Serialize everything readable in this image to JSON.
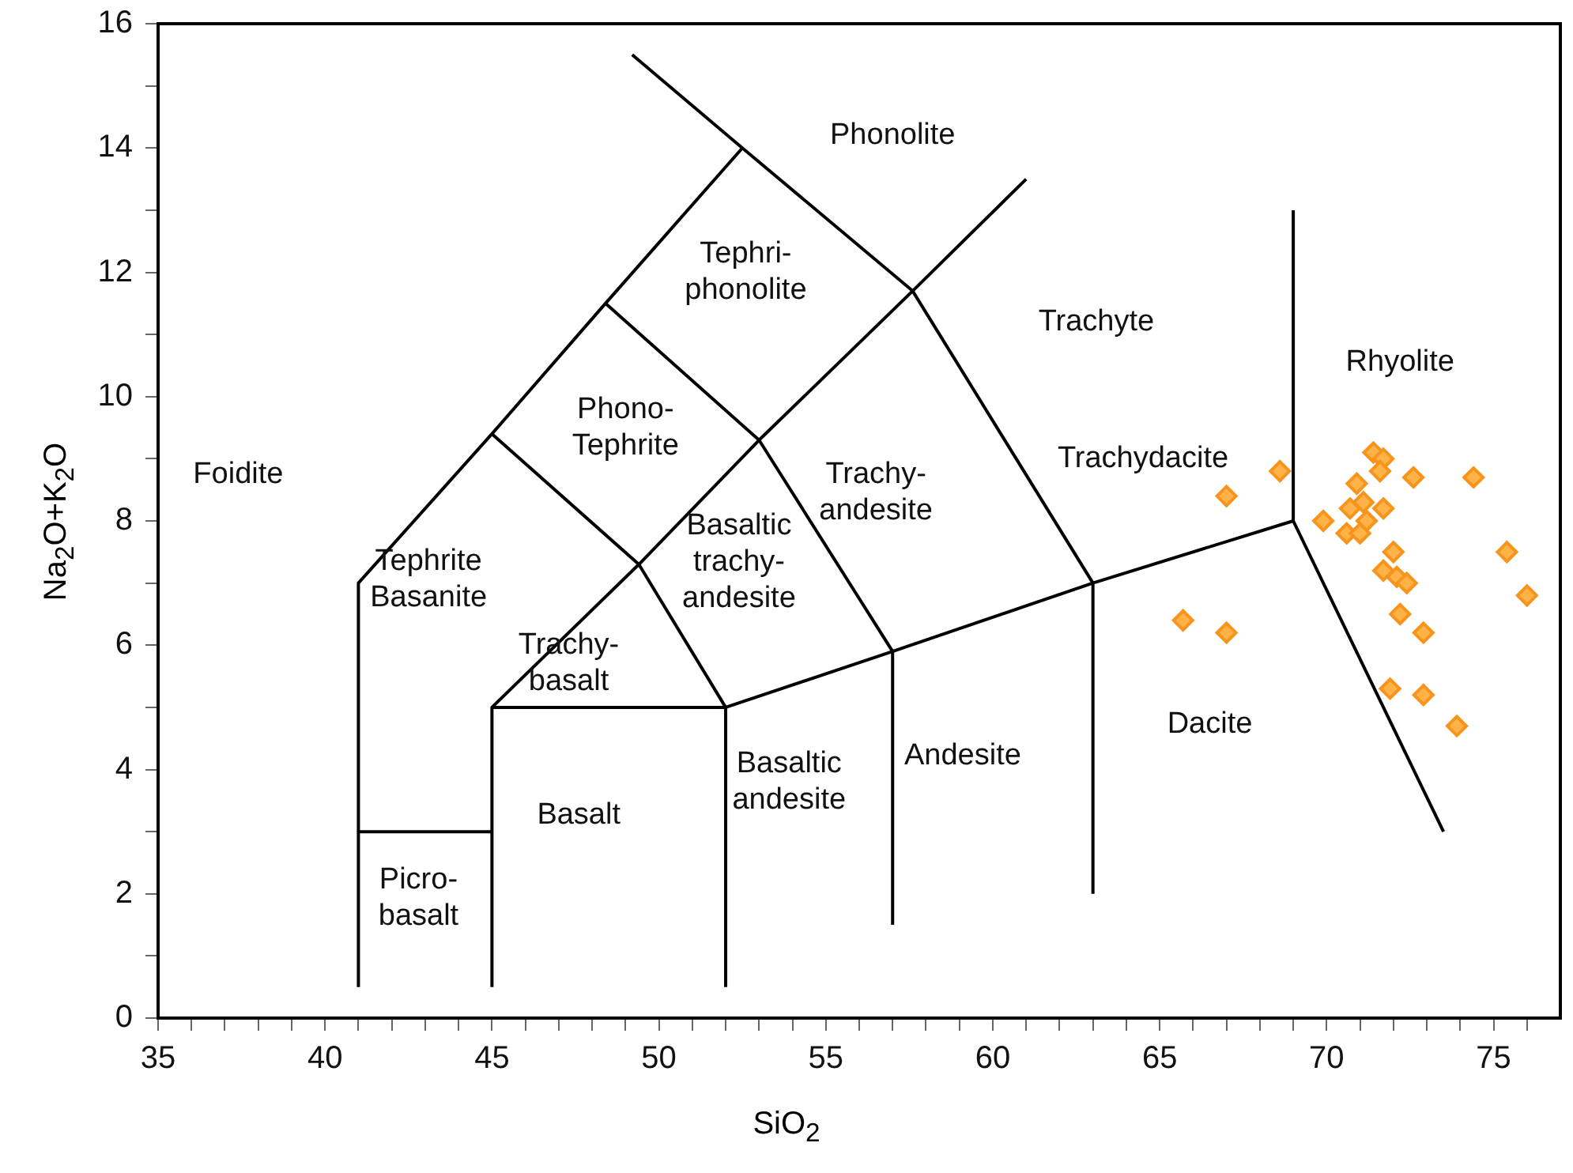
{
  "chart_data": {
    "type": "scatter",
    "xlabel": "SiO$_{2}$",
    "ylabel": "Na$_{2}$O+K$_{2}$O",
    "xlim": [
      35,
      77
    ],
    "ylim": [
      0,
      16
    ],
    "xticks": [
      35,
      {
        "value": 36,
        "label": null
      },
      {
        "value": 37,
        "label": null
      },
      {
        "value": 38,
        "label": null
      },
      {
        "value": 39,
        "label": null
      },
      40,
      {
        "value": 41,
        "label": null
      },
      {
        "value": 42,
        "label": null
      },
      {
        "value": 43,
        "label": null
      },
      {
        "value": 44,
        "label": null
      },
      45,
      {
        "value": 46,
        "label": null
      },
      {
        "value": 47,
        "label": null
      },
      {
        "value": 48,
        "label": null
      },
      {
        "value": 49,
        "label": null
      },
      50,
      {
        "value": 51,
        "label": null
      },
      {
        "value": 52,
        "label": null
      },
      {
        "value": 53,
        "label": null
      },
      {
        "value": 54,
        "label": null
      },
      55,
      {
        "value": 56,
        "label": null
      },
      {
        "value": 57,
        "label": null
      },
      {
        "value": 58,
        "label": null
      },
      {
        "value": 59,
        "label": null
      },
      60,
      {
        "value": 61,
        "label": null
      },
      {
        "value": 62,
        "label": null
      },
      {
        "value": 63,
        "label": null
      },
      {
        "value": 64,
        "label": null
      },
      65,
      {
        "value": 66,
        "label": null
      },
      {
        "value": 67,
        "label": null
      },
      {
        "value": 68,
        "label": null
      },
      {
        "value": 69,
        "label": null
      },
      70,
      {
        "value": 71,
        "label": null
      },
      {
        "value": 72,
        "label": null
      },
      {
        "value": 73,
        "label": null
      },
      {
        "value": 74,
        "label": null
      },
      75,
      {
        "value": 76,
        "label": null
      }
    ],
    "yticks": [
      0,
      {
        "value": 1,
        "label": null
      },
      2,
      {
        "value": 3,
        "label": null
      },
      4,
      {
        "value": 5,
        "label": null
      },
      6,
      {
        "value": 7,
        "label": null
      },
      8,
      {
        "value": 9,
        "label": null
      },
      10,
      {
        "value": 11,
        "label": null
      },
      12,
      {
        "value": 13,
        "label": null
      },
      14,
      {
        "value": 15,
        "label": null
      },
      16
    ],
    "grid": false,
    "legend": false,
    "marker": "diamond",
    "series": [
      {
        "color": "#f7941d",
        "x": [
          68.6,
          67.0,
          65.7,
          67.0,
          69.9,
          71.4,
          71.7,
          71.6,
          72.6,
          74.4,
          70.9,
          70.7,
          71.1,
          71.7,
          71.2,
          70.6,
          71.0,
          72.0,
          75.4,
          71.7,
          72.1,
          72.4,
          76.0,
          72.2,
          72.9,
          71.9,
          72.9,
          73.9
        ],
        "values": [
          8.8,
          8.4,
          6.4,
          6.2,
          8.0,
          9.1,
          9.0,
          8.8,
          8.7,
          8.7,
          8.6,
          8.2,
          8.3,
          8.2,
          8.0,
          7.8,
          7.8,
          7.5,
          7.5,
          7.2,
          7.1,
          7.0,
          6.8,
          6.5,
          6.2,
          5.3,
          5.2,
          4.7
        ]
      },
      {
        "type": "line",
        "marker": "none",
        "color": "#000000",
        "x": [
          41,
          41,
          45
        ],
        "values": [
          0.5,
          3,
          3
        ]
      },
      {
        "type": "line",
        "marker": "none",
        "color": "#000000",
        "x": [
          41,
          41,
          45,
          48.4,
          52.5,
          49.2
        ],
        "values": [
          3,
          7,
          9.4,
          11.5,
          14,
          15.5
        ]
      },
      {
        "type": "line",
        "marker": "none",
        "color": "#000000",
        "x": [
          45,
          45,
          49.4,
          53,
          57.6,
          61
        ],
        "values": [
          0.5,
          5,
          7.3,
          9.3,
          11.7,
          13.5
        ]
      },
      {
        "type": "line",
        "marker": "none",
        "color": "#000000",
        "x": [
          45,
          52,
          57,
          63,
          69,
          69
        ],
        "values": [
          5,
          5,
          5.9,
          7,
          8,
          13
        ]
      },
      {
        "type": "line",
        "marker": "none",
        "color": "#000000",
        "x": [
          52,
          52
        ],
        "values": [
          0.5,
          5
        ]
      },
      {
        "type": "line",
        "marker": "none",
        "color": "#000000",
        "x": [
          57,
          57
        ],
        "values": [
          1.5,
          5.9
        ]
      },
      {
        "type": "line",
        "marker": "none",
        "color": "#000000",
        "x": [
          63,
          63
        ],
        "values": [
          2,
          7
        ]
      },
      {
        "type": "line",
        "marker": "none",
        "color": "#000000",
        "x": [
          45,
          49.4,
          52
        ],
        "values": [
          9.4,
          7.3,
          5
        ]
      },
      {
        "type": "line",
        "marker": "none",
        "color": "#000000",
        "x": [
          48.4,
          53,
          57
        ],
        "values": [
          11.5,
          9.3,
          5.9
        ]
      },
      {
        "type": "line",
        "marker": "none",
        "color": "#000000",
        "x": [
          52.5,
          57.6,
          63
        ],
        "values": [
          14,
          11.7,
          7
        ]
      },
      {
        "type": "line",
        "marker": "none",
        "color": "#000000",
        "x": [
          69,
          73.5
        ],
        "values": [
          8,
          3
        ]
      }
    ],
    "annotations": [
      "Phonolite",
      "Tephri-\nphonolite",
      "Trachyte",
      "Rhyolite",
      "Phono-\nTephrite",
      "Foidite",
      "Trachy-\nandesite",
      "Trachydacite",
      "Tephrite\nBasanite",
      "Basaltic\ntrachy-\nandesite",
      "Trachy-\nbasalt",
      "Dacite",
      "Andesite",
      "Basalt",
      "Basaltic\nandesite",
      "Picro-\nbasalt"
    ]
  }
}
